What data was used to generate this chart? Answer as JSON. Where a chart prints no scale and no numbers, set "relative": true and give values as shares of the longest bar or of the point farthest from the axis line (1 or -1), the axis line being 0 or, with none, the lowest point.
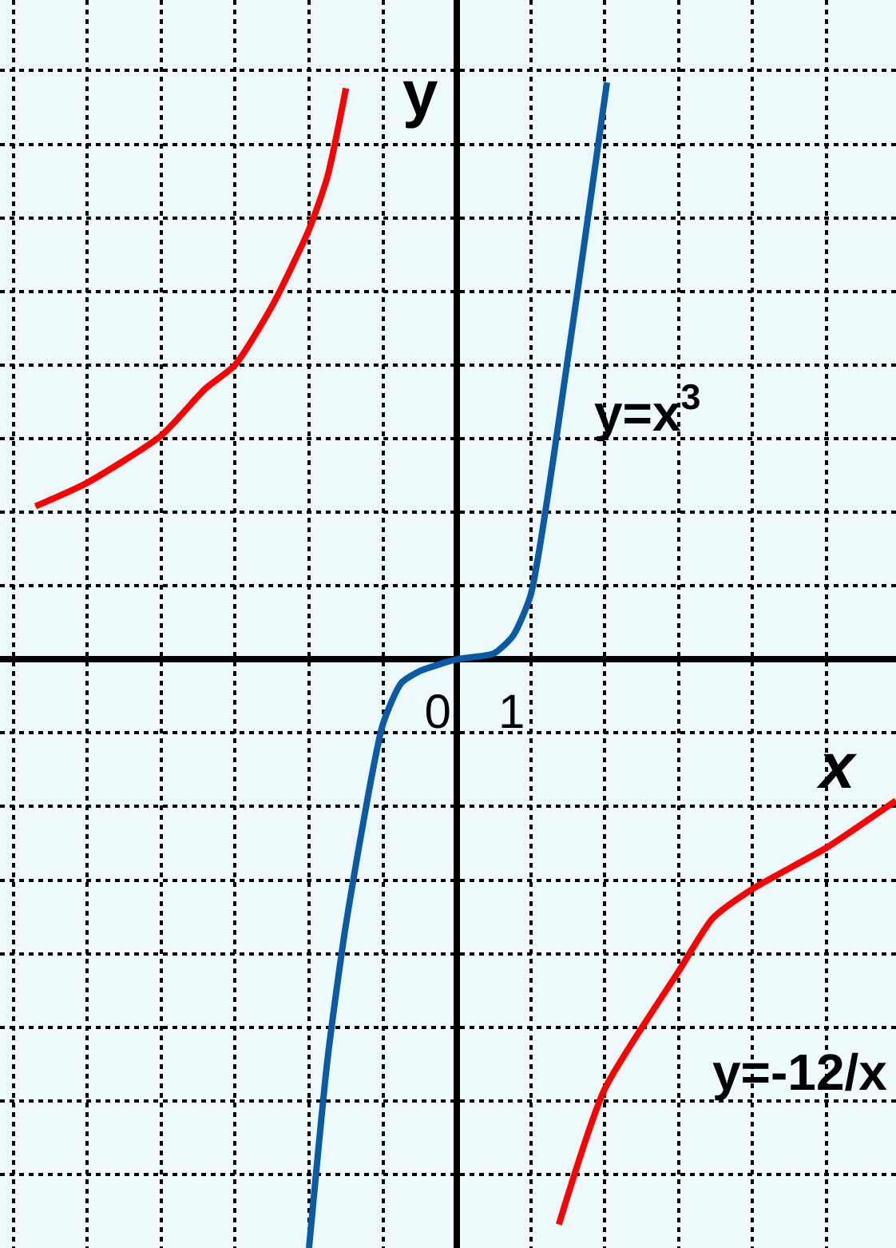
{
  "chart_data": {
    "type": "line",
    "xlabel": "x",
    "ylabel": "y",
    "relative": true,
    "xlim": [
      -6.18,
      5.94
    ],
    "xticks": [
      {
        "value": -6,
        "label": null
      },
      {
        "value": -5,
        "label": null
      },
      {
        "value": -4,
        "label": null
      },
      {
        "value": -3,
        "label": null
      },
      {
        "value": -2,
        "label": null
      },
      {
        "value": -1,
        "label": null
      },
      0,
      1,
      {
        "value": 2,
        "label": null
      },
      {
        "value": 3,
        "label": null
      },
      {
        "value": 4,
        "label": null
      },
      {
        "value": 5,
        "label": null
      }
    ],
    "tick_labels": "x",
    "grid": true,
    "legend": false,
    "marker": "none",
    "line_style": "solid",
    "series": [
      {
        "name": "y=x$^{3}$",
        "color": "#0b5aa6",
        "x": [
          -2.0,
          -1.75,
          -1.5,
          -1.0,
          -0.75,
          -0.5,
          0,
          0.5,
          0.76,
          1.0,
          1.5,
          1.75,
          2.03
        ],
        "values": [
          -1,
          -0.68,
          -0.45,
          -0.11,
          -0.04,
          -0.02,
          0,
          0.01,
          0.04,
          0.11,
          0.51,
          0.73,
          0.98
        ]
      },
      {
        "name": "y=-12/x",
        "color": "#ff0000",
        "x": [
          -5.7,
          -5,
          -4,
          -3.4,
          -3,
          -2.5,
          -2,
          -1.75,
          -1.5,
          0,
          1.38,
          2,
          3,
          3.46,
          4,
          5,
          5.94
        ],
        "values": [
          0.26,
          0.3,
          0.38,
          0.46,
          0.5,
          0.6,
          0.73,
          0.82,
          0.97,
          null,
          -0.96,
          -0.73,
          -0.53,
          -0.44,
          -0.39,
          -0.32,
          -0.24
        ]
      }
    ]
  }
}
